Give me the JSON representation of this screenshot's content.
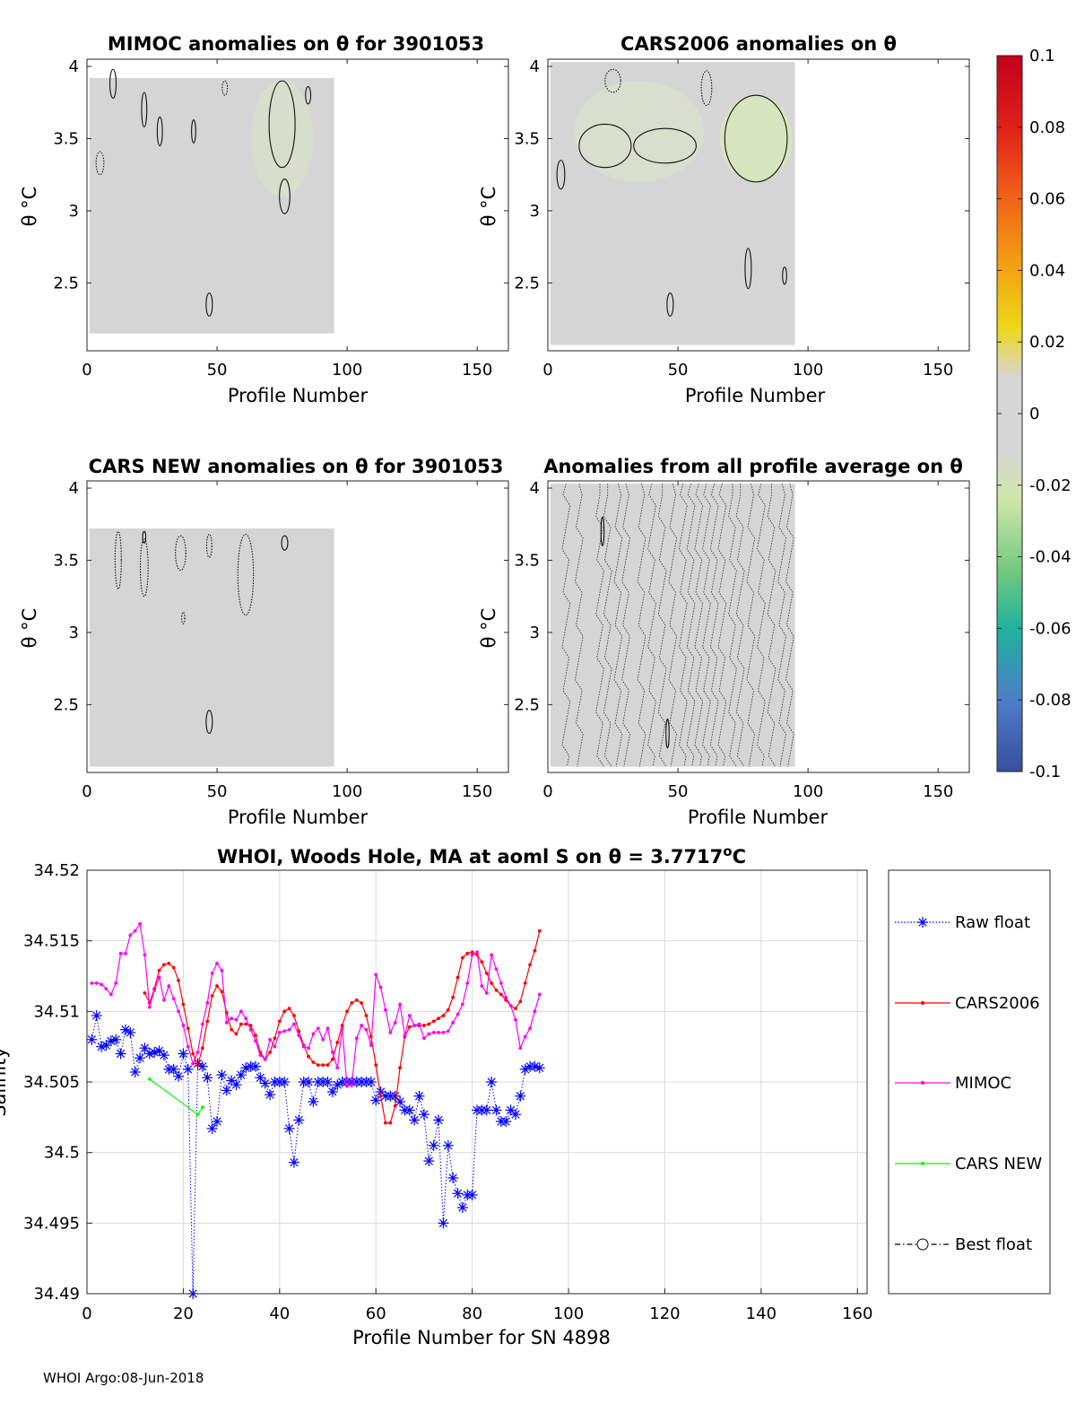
{
  "chart_data": [
    {
      "type": "heatmap",
      "title": "MIMOC anomalies on θ  for 3901053",
      "xlabel": "Profile Number",
      "ylabel": "θ °C",
      "xlim": [
        0,
        162
      ],
      "ylim": [
        2.03,
        4.05
      ],
      "xticks": [
        0,
        50,
        100,
        150
      ],
      "xticklabels": [
        "0",
        "50",
        "100",
        "150"
      ],
      "yticks": [
        2.5,
        3,
        3.5,
        4
      ],
      "yticklabels": [
        "2.5",
        "3",
        "3.5",
        "4"
      ],
      "coverage": {
        "x": [
          0,
          95
        ],
        "y": [
          2.15,
          3.92
        ]
      },
      "contours": [
        {
          "style": "solid",
          "x": 47,
          "y": 2.35,
          "rx": 1.2,
          "ry": 0.08
        },
        {
          "style": "solid",
          "x": 22,
          "y": 3.7,
          "rx": 1.0,
          "ry": 0.12
        },
        {
          "style": "solid",
          "x": 28,
          "y": 3.55,
          "rx": 1.0,
          "ry": 0.1
        },
        {
          "style": "solid",
          "x": 10,
          "y": 3.88,
          "rx": 1.2,
          "ry": 0.1
        },
        {
          "style": "solid",
          "x": 41,
          "y": 3.55,
          "rx": 0.8,
          "ry": 0.08
        },
        {
          "style": "solid",
          "x": 75,
          "y": 3.6,
          "rx": 5,
          "ry": 0.3
        },
        {
          "style": "solid",
          "x": 76,
          "y": 3.1,
          "rx": 2,
          "ry": 0.12
        },
        {
          "style": "solid",
          "x": 85,
          "y": 3.8,
          "rx": 1,
          "ry": 0.06
        },
        {
          "style": "dotted",
          "x": 5,
          "y": 3.33,
          "rx": 1.5,
          "ry": 0.08
        },
        {
          "style": "dotted",
          "x": 53,
          "y": 3.85,
          "rx": 1,
          "ry": 0.05
        }
      ]
    },
    {
      "type": "heatmap",
      "title": "CARS2006 anomalies on θ",
      "xlabel": "Profile Number",
      "ylabel": "θ °C",
      "xlim": [
        0,
        162
      ],
      "ylim": [
        2.03,
        4.05
      ],
      "xticks": [
        0,
        50,
        100,
        150
      ],
      "xticklabels": [
        "0",
        "50",
        "100",
        "150"
      ],
      "yticks": [
        2.5,
        3,
        3.5,
        4
      ],
      "yticklabels": [
        "2.5",
        "3",
        "3.5",
        "4"
      ],
      "coverage": {
        "x": [
          0,
          95
        ],
        "y": [
          2.07,
          4.03
        ]
      },
      "contours": [
        {
          "style": "solid",
          "x": 22,
          "y": 3.45,
          "rx": 10,
          "ry": 0.15
        },
        {
          "style": "solid",
          "x": 45,
          "y": 3.45,
          "rx": 12,
          "ry": 0.12
        },
        {
          "style": "solid",
          "x": 80,
          "y": 3.5,
          "rx": 12,
          "ry": 0.3
        },
        {
          "style": "solid",
          "x": 47,
          "y": 2.35,
          "rx": 1.2,
          "ry": 0.08
        },
        {
          "style": "solid",
          "x": 77,
          "y": 2.6,
          "rx": 1.2,
          "ry": 0.14
        },
        {
          "style": "solid",
          "x": 91,
          "y": 2.55,
          "rx": 0.8,
          "ry": 0.06
        },
        {
          "style": "solid",
          "x": 5,
          "y": 3.25,
          "rx": 1.5,
          "ry": 0.1
        },
        {
          "style": "dotted",
          "x": 25,
          "y": 3.9,
          "rx": 3,
          "ry": 0.08
        },
        {
          "style": "dotted",
          "x": 61,
          "y": 3.85,
          "rx": 2,
          "ry": 0.12
        }
      ]
    },
    {
      "type": "heatmap",
      "title": "CARS NEW anomalies on θ for 3901053",
      "xlabel": "Profile Number",
      "ylabel": "θ °C",
      "xlim": [
        0,
        162
      ],
      "ylim": [
        2.03,
        4.05
      ],
      "xticks": [
        0,
        50,
        100,
        150
      ],
      "xticklabels": [
        "0",
        "50",
        "100",
        "150"
      ],
      "yticks": [
        2.5,
        3,
        3.5,
        4
      ],
      "yticklabels": [
        "2.5",
        "3",
        "3.5",
        "4"
      ],
      "coverage": {
        "x": [
          0,
          95
        ],
        "y": [
          2.07,
          3.72
        ]
      },
      "contours": [
        {
          "style": "solid",
          "x": 47,
          "y": 2.38,
          "rx": 1.2,
          "ry": 0.08
        },
        {
          "style": "solid",
          "x": 76,
          "y": 3.62,
          "rx": 1.2,
          "ry": 0.05
        },
        {
          "style": "solid",
          "x": 22,
          "y": 3.66,
          "rx": 0.6,
          "ry": 0.04
        },
        {
          "style": "dotted",
          "x": 12,
          "y": 3.5,
          "rx": 1.2,
          "ry": 0.2
        },
        {
          "style": "dotted",
          "x": 22,
          "y": 3.45,
          "rx": 1.5,
          "ry": 0.2
        },
        {
          "style": "dotted",
          "x": 36,
          "y": 3.55,
          "rx": 2,
          "ry": 0.12
        },
        {
          "style": "dotted",
          "x": 61,
          "y": 3.4,
          "rx": 3,
          "ry": 0.28
        },
        {
          "style": "dotted",
          "x": 47,
          "y": 3.6,
          "rx": 1,
          "ry": 0.08
        },
        {
          "style": "dotted",
          "x": 37,
          "y": 3.1,
          "rx": 0.6,
          "ry": 0.04
        }
      ]
    },
    {
      "type": "heatmap",
      "title": "Anomalies from all profile average on θ",
      "xlabel": "Profile Number",
      "ylabel": "θ °C",
      "xlim": [
        0,
        162
      ],
      "ylim": [
        2.03,
        4.05
      ],
      "xticks": [
        0,
        50,
        100,
        150
      ],
      "xticklabels": [
        "0",
        "50",
        "100",
        "150"
      ],
      "yticks": [
        2.5,
        3,
        3.5,
        4
      ],
      "yticklabels": [
        "2.5",
        "3",
        "3.5",
        "4"
      ],
      "coverage": {
        "x": [
          0,
          95
        ],
        "y": [
          2.07,
          4.03
        ]
      },
      "dotted_columns": [
        7,
        12,
        20,
        23,
        27,
        30,
        36,
        40,
        44,
        48,
        52,
        55,
        58,
        61,
        64,
        67,
        71,
        74,
        78,
        82,
        86,
        90,
        93
      ],
      "contours": [
        {
          "style": "solid",
          "x": 21,
          "y": 3.7,
          "rx": 0.6,
          "ry": 0.1
        },
        {
          "style": "solid",
          "x": 46,
          "y": 2.3,
          "rx": 0.6,
          "ry": 0.1
        }
      ]
    },
    {
      "type": "line",
      "title": "WHOI, Woods Hole, MA at aoml S on θ = 3.7717°C",
      "xlabel": "Profile Number for SN 4898",
      "ylabel": "Salinity",
      "xlim": [
        0,
        162
      ],
      "ylim": [
        34.49,
        34.52
      ],
      "xticks": [
        0,
        20,
        40,
        60,
        80,
        100,
        120,
        140,
        160
      ],
      "xticklabels": [
        "0",
        "20",
        "40",
        "60",
        "80",
        "100",
        "120",
        "140",
        "160"
      ],
      "yticks": [
        34.49,
        34.495,
        34.5,
        34.505,
        34.51,
        34.515,
        34.52
      ],
      "yticklabels": [
        "34.49",
        "34.495",
        "34.5",
        "34.505",
        "34.51",
        "34.515",
        "34.52"
      ],
      "grid": true,
      "series": [
        {
          "name": "Raw float",
          "color": "#0000ff",
          "marker": "asterisk",
          "line": "dotted",
          "x": [
            1,
            2,
            3,
            4,
            5,
            6,
            7,
            8,
            9,
            10,
            11,
            12,
            13,
            14,
            15,
            16,
            17,
            18,
            19,
            20,
            21,
            22,
            23,
            24,
            25,
            26,
            27,
            28,
            29,
            30,
            31,
            32,
            33,
            34,
            35,
            36,
            37,
            38,
            39,
            40,
            41,
            42,
            43,
            44,
            45,
            46,
            47,
            48,
            49,
            50,
            51,
            52,
            53,
            54,
            55,
            56,
            57,
            58,
            59,
            60,
            61,
            62,
            63,
            64,
            65,
            66,
            67,
            68,
            69,
            70,
            71,
            72,
            73,
            74,
            75,
            76,
            77,
            78,
            79,
            80,
            81,
            82,
            83,
            84,
            85,
            86,
            87,
            88,
            89,
            90,
            91,
            92,
            93,
            94
          ],
          "y": [
            34.508,
            34.5097,
            34.5075,
            34.5076,
            34.5079,
            34.508,
            34.507,
            34.5087,
            34.5085,
            34.5057,
            34.5067,
            34.5074,
            34.507,
            34.5071,
            34.5072,
            34.5069,
            34.5059,
            34.5059,
            34.5054,
            34.507,
            34.5059,
            34.49,
            34.5063,
            34.5061,
            34.5053,
            34.5017,
            34.5022,
            34.5055,
            34.5044,
            34.5051,
            34.5048,
            34.5055,
            34.506,
            34.5061,
            34.5061,
            34.5053,
            34.5049,
            34.5041,
            34.505,
            34.505,
            34.505,
            34.5017,
            34.4993,
            34.5023,
            34.505,
            34.505,
            34.5036,
            34.505,
            34.505,
            34.505,
            34.5043,
            34.5048,
            34.505,
            34.505,
            34.505,
            34.505,
            34.505,
            34.505,
            34.505,
            34.5037,
            34.5043,
            34.504,
            34.504,
            34.504,
            34.5036,
            34.503,
            34.503,
            34.5023,
            34.504,
            34.5027,
            34.4994,
            34.5005,
            34.5023,
            34.495,
            34.5005,
            34.4982,
            34.4971,
            34.4961,
            34.497,
            34.497,
            34.503,
            34.503,
            34.503,
            34.505,
            34.503,
            34.5022,
            34.5022,
            34.503,
            34.5027,
            34.504,
            34.5059,
            34.5061,
            34.5061,
            34.506
          ]
        },
        {
          "name": "CARS2006",
          "color": "#ff0000",
          "marker": "dot",
          "line": "solid",
          "x": [
            12,
            13,
            14,
            15,
            16,
            17,
            18,
            19,
            20,
            21,
            22,
            23,
            24,
            25,
            26,
            27,
            28,
            29,
            30,
            31,
            32,
            33,
            34,
            35,
            36,
            37,
            38,
            39,
            40,
            41,
            42,
            43,
            44,
            45,
            46,
            47,
            48,
            49,
            50,
            51,
            52,
            53,
            54,
            55,
            56,
            57,
            58,
            59,
            60,
            61,
            62,
            63,
            64,
            65,
            66,
            67,
            68,
            69,
            70,
            71,
            72,
            73,
            74,
            75,
            76,
            77,
            78,
            79,
            80,
            81,
            82,
            83,
            84,
            85,
            86,
            87,
            88,
            89,
            90,
            91,
            92,
            93,
            94
          ],
          "y": [
            34.5113,
            34.5106,
            34.5116,
            34.5129,
            34.5133,
            34.5134,
            34.5131,
            34.5122,
            34.5105,
            34.5088,
            34.507,
            34.5062,
            34.5074,
            34.5093,
            34.5111,
            34.5118,
            34.5114,
            34.5099,
            34.5087,
            34.5084,
            34.5091,
            34.5091,
            34.509,
            34.5083,
            34.5071,
            34.5066,
            34.5071,
            34.5081,
            34.5093,
            34.51,
            34.5102,
            34.5097,
            34.5086,
            34.5076,
            34.5068,
            34.5064,
            34.5062,
            34.5062,
            34.5062,
            34.5066,
            34.5078,
            34.509,
            34.51,
            34.5106,
            34.5108,
            34.5106,
            34.5097,
            34.5082,
            34.5062,
            34.504,
            34.5021,
            34.5021,
            34.5033,
            34.506,
            34.5082,
            34.5089,
            34.509,
            34.509,
            34.509,
            34.5091,
            34.5093,
            34.5095,
            34.5097,
            34.5101,
            34.511,
            34.5124,
            34.5138,
            34.5141,
            34.5142,
            34.514,
            34.5135,
            34.5127,
            34.512,
            34.5115,
            34.5112,
            34.5108,
            34.5104,
            34.5102,
            34.5107,
            34.512,
            34.5133,
            34.5143,
            34.5157
          ]
        },
        {
          "name": "MIMOC",
          "color": "#ff00ff",
          "marker": "dot",
          "line": "solid",
          "x": [
            1,
            2,
            3,
            4,
            5,
            6,
            7,
            8,
            9,
            10,
            11,
            12,
            13,
            14,
            15,
            16,
            17,
            18,
            19,
            20,
            21,
            22,
            23,
            24,
            25,
            26,
            27,
            28,
            29,
            30,
            31,
            32,
            33,
            34,
            35,
            36,
            37,
            38,
            39,
            40,
            41,
            42,
            43,
            44,
            45,
            46,
            47,
            48,
            49,
            50,
            51,
            52,
            53,
            54,
            55,
            56,
            57,
            58,
            59,
            60,
            61,
            62,
            63,
            64,
            65,
            66,
            67,
            68,
            69,
            70,
            71,
            72,
            73,
            74,
            75,
            76,
            77,
            78,
            79,
            80,
            81,
            82,
            83,
            84,
            85,
            86,
            87,
            88,
            89,
            90,
            91,
            92,
            93,
            94
          ],
          "y": [
            34.512,
            34.512,
            34.5119,
            34.5116,
            34.5112,
            34.512,
            34.5141,
            34.5141,
            34.5154,
            34.5157,
            34.5162,
            34.514,
            34.5103,
            34.5115,
            34.5124,
            34.5108,
            34.5118,
            34.5109,
            34.51,
            34.509,
            34.5075,
            34.5063,
            34.5071,
            34.5091,
            34.5106,
            34.5127,
            34.5134,
            34.5129,
            34.5092,
            34.5095,
            34.5094,
            34.51,
            34.5095,
            34.5087,
            34.5079,
            34.5069,
            34.5066,
            34.508,
            34.5075,
            34.5085,
            34.5086,
            34.5087,
            34.5091,
            34.5083,
            34.5075,
            34.5074,
            34.5084,
            34.5088,
            34.508,
            34.5088,
            34.5071,
            34.506,
            34.5088,
            34.5047,
            34.5048,
            34.5081,
            34.509,
            34.5087,
            34.5076,
            34.5126,
            34.5117,
            34.5101,
            34.5085,
            34.5092,
            34.5105,
            34.5083,
            34.5097,
            34.509,
            34.5091,
            34.5081,
            34.5084,
            34.5085,
            34.5085,
            34.5085,
            34.5086,
            34.5092,
            34.5098,
            34.5105,
            34.512,
            34.514,
            34.5142,
            34.5118,
            34.5113,
            34.514,
            34.513,
            34.512,
            34.511,
            34.5104,
            34.5094,
            34.5074,
            34.5082,
            34.5088,
            34.51,
            34.5112
          ]
        },
        {
          "name": "CARS NEW",
          "color": "#00ff00",
          "marker": "dot",
          "line": "solid",
          "x": [
            13,
            23,
            24
          ],
          "y": [
            34.5052,
            34.5027,
            34.5032
          ]
        },
        {
          "name": "Best float",
          "color": "#000000",
          "marker": "circle",
          "line": "dash-dot",
          "x": [],
          "y": []
        }
      ]
    }
  ],
  "colorbar": {
    "ticks": [
      "0.1",
      "0.08",
      "0.06",
      "0.04",
      "0.02",
      "0",
      "-0.02",
      "-0.04",
      "-0.06",
      "-0.08",
      "-0.1"
    ],
    "colors": [
      "#c2001c",
      "#e0201a",
      "#f06418",
      "#f3a413",
      "#ecd81a",
      "#d3d3d3",
      "#cfe7a9",
      "#72c97f",
      "#1fb29c",
      "#4d7ec9",
      "#3a4e9f"
    ]
  },
  "footer": "WHOI Argo:08-Jun-2018"
}
